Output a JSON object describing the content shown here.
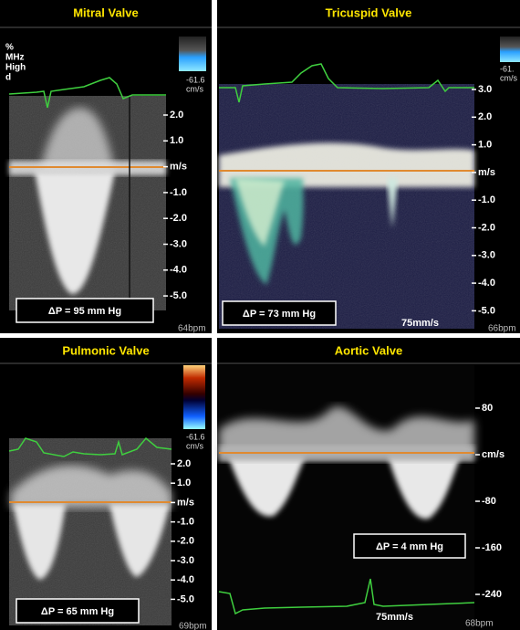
{
  "panels": [
    {
      "title": "Mitral Valve",
      "settings": [
        "%",
        "MHz",
        "High",
        "d"
      ],
      "scale": [
        "-61.6",
        "cm/s"
      ],
      "ticks": [
        "2.0",
        "1.0",
        "m/s",
        "-1.0",
        "-2.0",
        "-3.0",
        "-4.0",
        "-5.0"
      ],
      "gradient": "ΔP = 95 mm Hg",
      "heart_rate": "64bpm"
    },
    {
      "title": "Tricuspid Valve",
      "scale": [
        "-61.",
        "cm/s"
      ],
      "ticks": [
        "3.0",
        "2.0",
        "1.0",
        "m/s",
        "-1.0",
        "-2.0",
        "-3.0",
        "-4.0",
        "-5.0"
      ],
      "gradient": "ΔP = 73 mm Hg",
      "sweep": "75mm/s",
      "heart_rate": "66bpm"
    },
    {
      "title": "Pulmonic Valve",
      "scale": [
        "-61.6",
        "cm/s"
      ],
      "ticks": [
        "2.0",
        "1.0",
        "m/s",
        "-1.0",
        "-2.0",
        "-3.0",
        "-4.0",
        "-5.0"
      ],
      "gradient": "ΔP = 65 mm Hg",
      "heart_rate": "69bpm"
    },
    {
      "title": "Aortic Valve",
      "ticks": [
        "80",
        "cm/s",
        "-80",
        "-160",
        "-240"
      ],
      "gradient": "ΔP = 4 mm Hg",
      "sweep": "75mm/s",
      "heart_rate": "68bpm"
    }
  ]
}
